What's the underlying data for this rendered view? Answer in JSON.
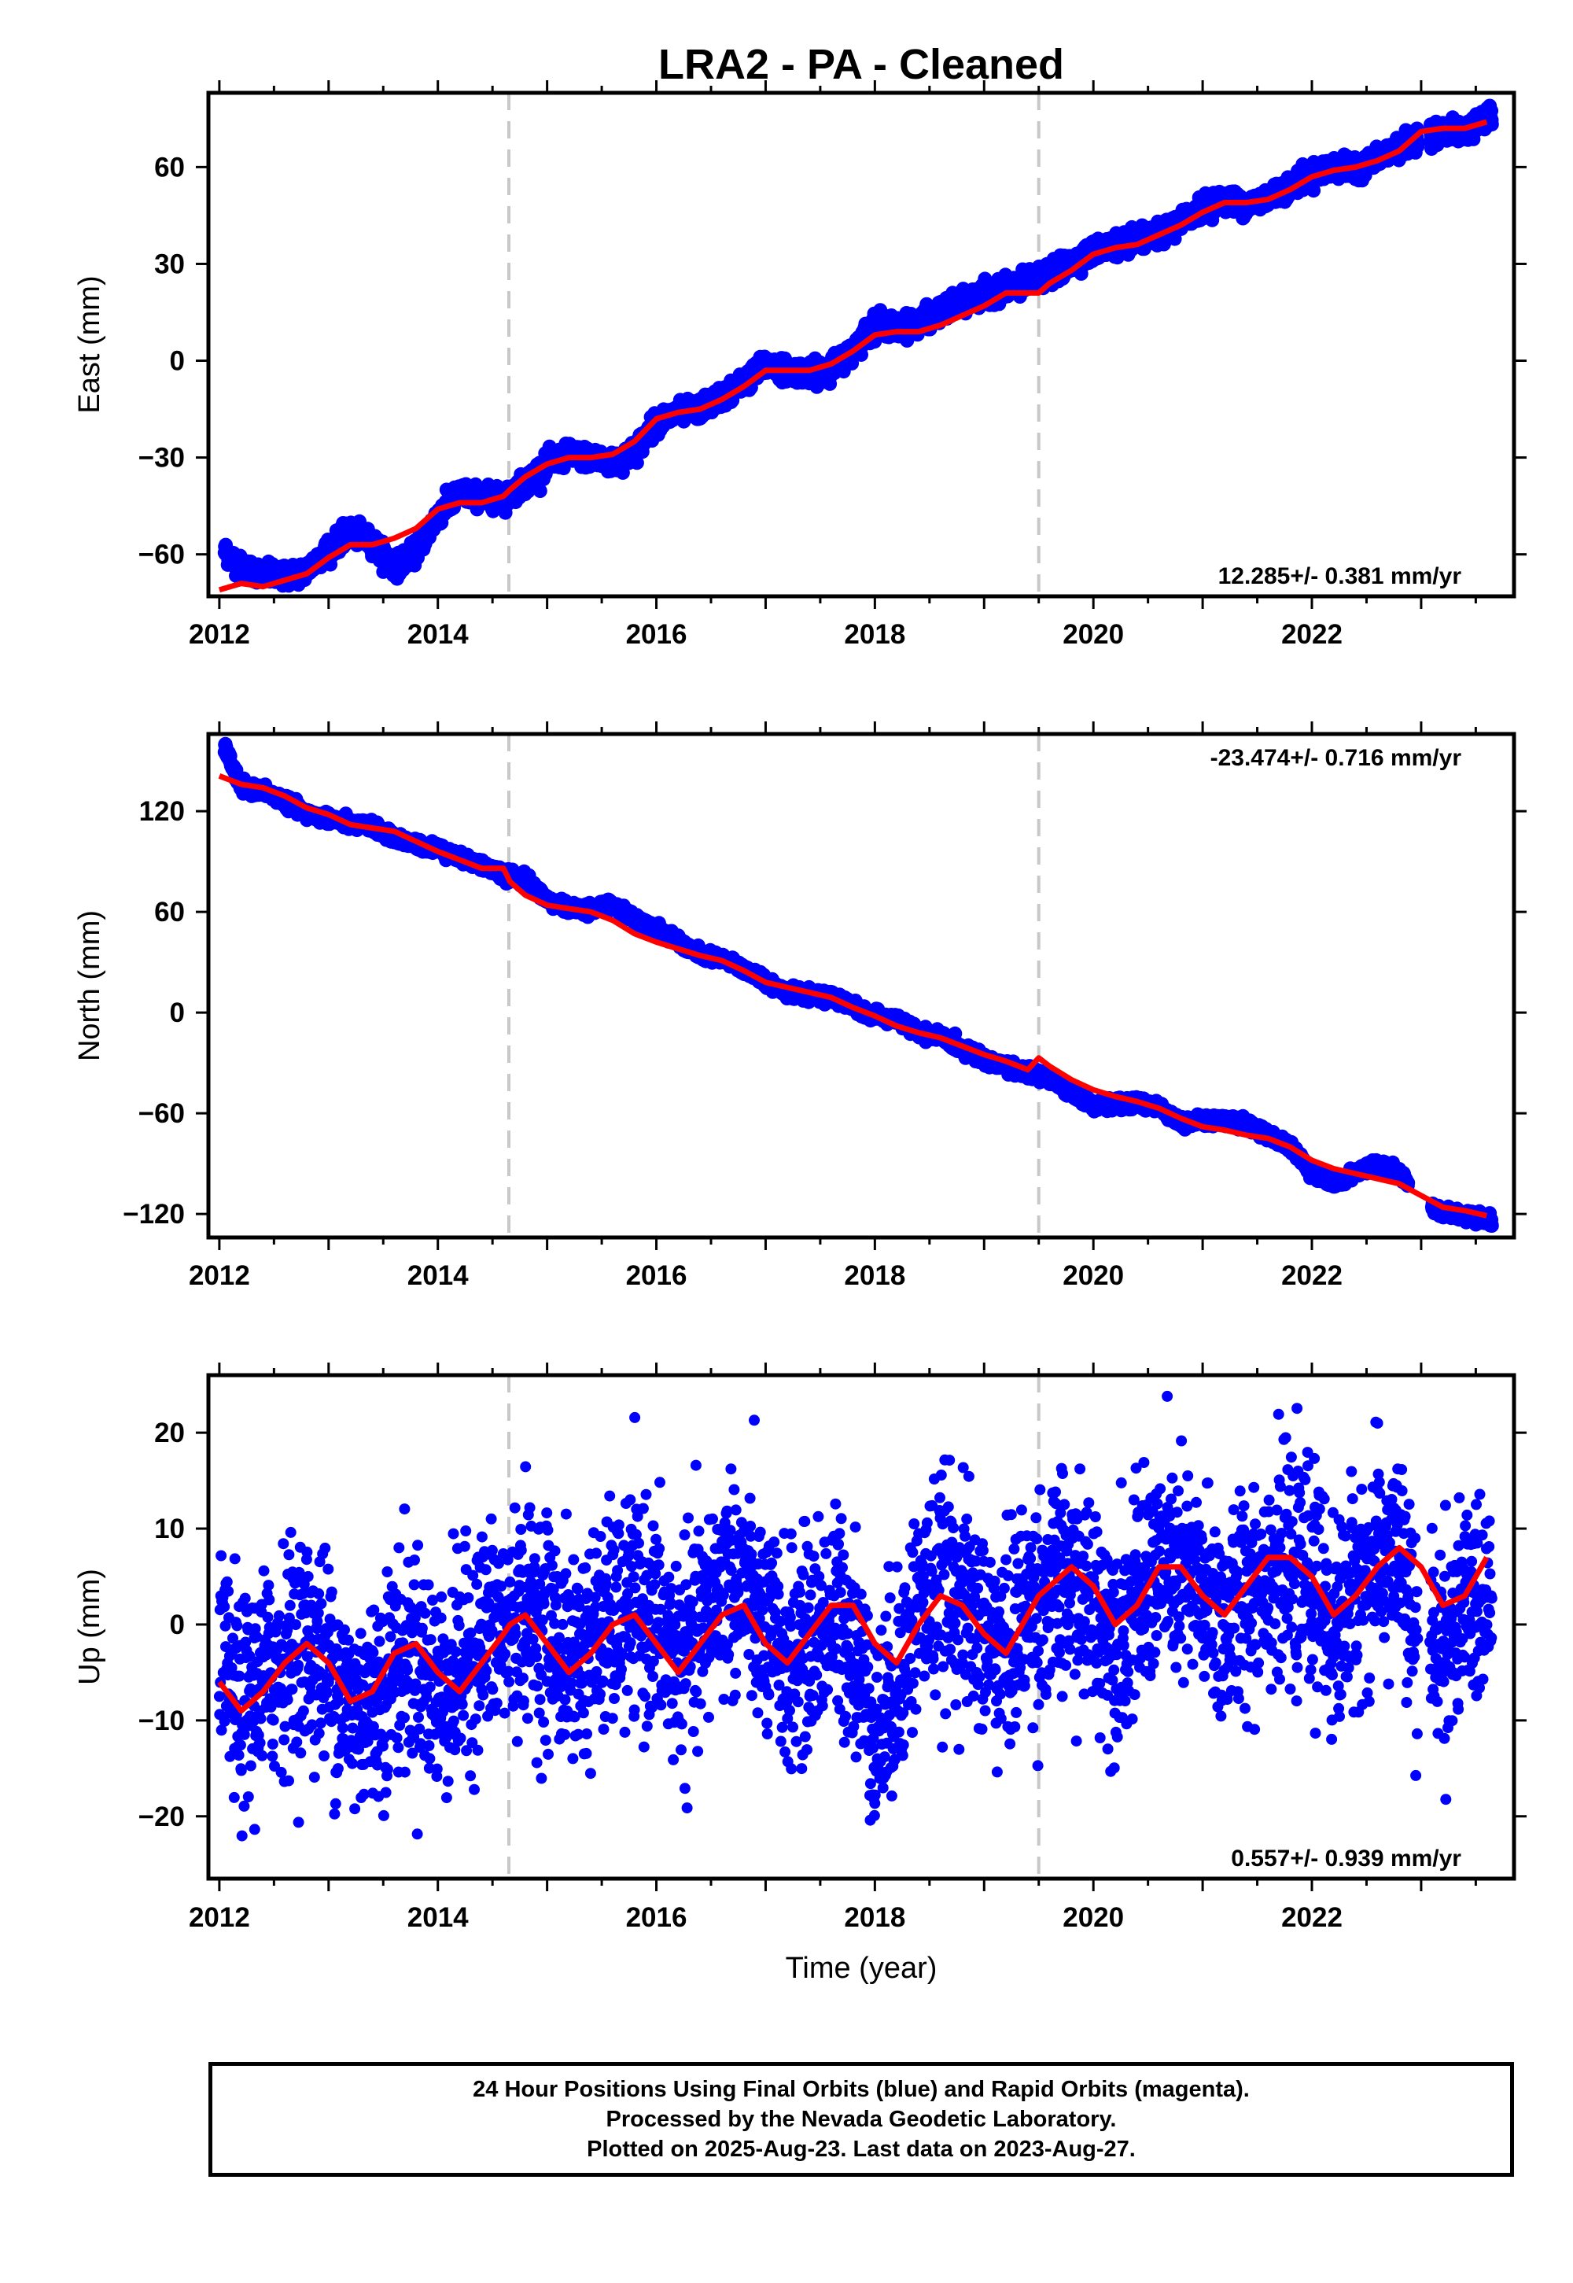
{
  "chart_data": {
    "type": "scatter",
    "title": "LRA2  - PA - Cleaned",
    "xlabel": "Time (year)",
    "xlim": [
      2011.9,
      2023.85
    ],
    "xticks": [
      2012,
      2014,
      2016,
      2018,
      2020,
      2022
    ],
    "xtick_labels": [
      "2012",
      "2014",
      "2016",
      "2018",
      "2020",
      "2022"
    ],
    "equipment_change_lines": [
      2014.65,
      2019.5
    ],
    "panels": [
      {
        "name": "East",
        "ylabel": "East (mm)",
        "ylim": [
          -73,
          83
        ],
        "yticks": [
          -60,
          -30,
          0,
          30,
          60
        ],
        "ytick_labels": [
          "−60",
          "−30",
          "0",
          "30",
          "60"
        ],
        "rate_label": "12.285+/- 0.381 mm/yr",
        "rate_position": "bottom-right",
        "series": [
          {
            "name": "Final Orbits",
            "kind": "daily-positions",
            "color": "#0000ff",
            "x": [
              2012.05,
              2012.2,
              2012.4,
              2012.6,
              2012.8,
              2013.0,
              2013.2,
              2013.4,
              2013.6,
              2013.8,
              2014.0,
              2014.2,
              2014.4,
              2014.6,
              2014.8,
              2015.0,
              2015.2,
              2015.4,
              2015.6,
              2015.8,
              2016.0,
              2016.2,
              2016.4,
              2016.6,
              2016.8,
              2017.0,
              2017.2,
              2017.4,
              2017.6,
              2017.8,
              2018.0,
              2018.2,
              2018.4,
              2018.6,
              2018.8,
              2019.0,
              2019.2,
              2019.4,
              2019.6,
              2019.8,
              2020.0,
              2020.2,
              2020.4,
              2020.6,
              2020.8,
              2021.0,
              2021.2,
              2021.4,
              2021.6,
              2021.8,
              2022.0,
              2022.2,
              2022.4,
              2022.6,
              2022.8,
              2023.0,
              2023.2,
              2023.4,
              2023.6
            ],
            "y": [
              -59,
              -64,
              -66,
              -67,
              -65,
              -58,
              -53,
              -56,
              -64,
              -59,
              -48,
              -41,
              -42,
              -43,
              -38,
              -32,
              -29,
              -30,
              -32,
              -28,
              -19,
              -16,
              -15,
              -11,
              -7,
              -1,
              -3,
              -4,
              -2,
              3,
              12,
              10,
              12,
              15,
              18,
              21,
              22,
              24,
              27,
              30,
              34,
              36,
              37,
              39,
              43,
              48,
              50,
              48,
              51,
              54,
              58,
              60,
              59,
              63,
              66,
              70,
              71,
              71,
              75
            ]
          },
          {
            "name": "Model fit",
            "kind": "trend",
            "color": "#ff0000",
            "x": [
              2012.0,
              2012.2,
              2012.4,
              2012.6,
              2012.8,
              2013.0,
              2013.2,
              2013.4,
              2013.6,
              2013.8,
              2014.0,
              2014.2,
              2014.4,
              2014.6,
              2014.66,
              2014.8,
              2015.0,
              2015.2,
              2015.4,
              2015.6,
              2015.8,
              2016.0,
              2016.2,
              2016.4,
              2016.6,
              2016.8,
              2017.0,
              2017.2,
              2017.4,
              2017.6,
              2017.8,
              2018.0,
              2018.2,
              2018.4,
              2018.6,
              2018.8,
              2019.0,
              2019.2,
              2019.4,
              2019.5,
              2019.6,
              2019.8,
              2020.0,
              2020.2,
              2020.4,
              2020.6,
              2020.8,
              2021.0,
              2021.2,
              2021.4,
              2021.6,
              2021.8,
              2022.0,
              2022.2,
              2022.4,
              2022.6,
              2022.8,
              2023.0,
              2023.2,
              2023.4,
              2023.6
            ],
            "y": [
              -71,
              -69,
              -70,
              -68,
              -66,
              -61,
              -57,
              -57,
              -55,
              -52,
              -46,
              -44,
              -44,
              -42,
              -40,
              -36,
              -32,
              -30,
              -30,
              -29,
              -25,
              -18,
              -16,
              -15,
              -12,
              -8,
              -3,
              -3,
              -3,
              -1,
              3,
              8,
              9,
              9,
              11,
              14,
              17,
              21,
              21,
              21,
              24,
              28,
              33,
              35,
              36,
              39,
              42,
              46,
              49,
              49,
              50,
              53,
              57,
              59,
              60,
              62,
              65,
              71,
              72,
              72,
              74
            ]
          }
        ]
      },
      {
        "name": "North",
        "ylabel": "North (mm)",
        "ylim": [
          -134,
          166
        ],
        "yticks": [
          -120,
          -60,
          0,
          60,
          120
        ],
        "ytick_labels": [
          "−120",
          "−60",
          "0",
          "60",
          "120"
        ],
        "rate_label": "-23.474+/- 0.716 mm/yr",
        "rate_position": "top-right",
        "series": [
          {
            "name": "Final Orbits",
            "kind": "daily-positions",
            "color": "#0000ff",
            "x": [
              2012.05,
              2012.2,
              2012.4,
              2012.6,
              2012.8,
              2013.0,
              2013.2,
              2013.4,
              2013.6,
              2013.8,
              2014.0,
              2014.2,
              2014.4,
              2014.6,
              2014.8,
              2015.0,
              2015.2,
              2015.4,
              2015.6,
              2015.8,
              2016.0,
              2016.2,
              2016.4,
              2016.6,
              2016.8,
              2017.0,
              2017.2,
              2017.4,
              2017.6,
              2017.8,
              2018.0,
              2018.2,
              2018.4,
              2018.6,
              2018.8,
              2019.0,
              2019.2,
              2019.4,
              2019.6,
              2019.8,
              2020.0,
              2020.2,
              2020.4,
              2020.6,
              2020.8,
              2021.0,
              2021.2,
              2021.4,
              2021.6,
              2021.8,
              2022.0,
              2022.2,
              2022.4,
              2022.6,
              2022.8,
              2023.0,
              2023.2,
              2023.4,
              2023.6
            ],
            "y": [
              158,
              134,
              132,
              126,
              118,
              116,
              112,
              111,
              104,
              100,
              98,
              92,
              88,
              82,
              80,
              67,
              62,
              62,
              64,
              56,
              50,
              42,
              34,
              32,
              26,
              19,
              12,
              10,
              9,
              4,
              -2,
              -4,
              -12,
              -14,
              -22,
              -27,
              -32,
              -36,
              -39,
              -48,
              -55,
              -55,
              -54,
              -56,
              -66,
              -64,
              -64,
              -66,
              -73,
              -80,
              -95,
              -102,
              -95,
              -90,
              -96,
              -112,
              -119,
              -121,
              -124
            ]
          },
          {
            "name": "Model fit",
            "kind": "trend",
            "color": "#ff0000",
            "x": [
              2012.0,
              2012.2,
              2012.4,
              2012.6,
              2012.8,
              2013.0,
              2013.2,
              2013.4,
              2013.6,
              2013.8,
              2014.0,
              2014.2,
              2014.4,
              2014.6,
              2014.66,
              2014.8,
              2015.0,
              2015.2,
              2015.4,
              2015.6,
              2015.8,
              2016.0,
              2016.2,
              2016.4,
              2016.6,
              2016.8,
              2017.0,
              2017.2,
              2017.4,
              2017.6,
              2017.8,
              2018.0,
              2018.2,
              2018.4,
              2018.6,
              2018.8,
              2019.0,
              2019.2,
              2019.4,
              2019.5,
              2019.6,
              2019.8,
              2020.0,
              2020.2,
              2020.4,
              2020.6,
              2020.8,
              2021.0,
              2021.2,
              2021.4,
              2021.6,
              2021.8,
              2022.0,
              2022.2,
              2022.4,
              2022.6,
              2022.8,
              2023.0,
              2023.2,
              2023.4,
              2023.6
            ],
            "y": [
              141,
              136,
              134,
              129,
              122,
              118,
              112,
              110,
              108,
              102,
              96,
              91,
              86,
              86,
              78,
              70,
              64,
              62,
              60,
              55,
              47,
              42,
              38,
              34,
              31,
              25,
              18,
              15,
              12,
              9,
              3,
              -2,
              -8,
              -12,
              -15,
              -20,
              -25,
              -29,
              -34,
              -27,
              -32,
              -40,
              -46,
              -50,
              -53,
              -57,
              -63,
              -68,
              -70,
              -73,
              -75,
              -80,
              -88,
              -93,
              -96,
              -99,
              -102,
              -109,
              -116,
              -118,
              -121
            ]
          }
        ]
      },
      {
        "name": "Up",
        "ylabel": "Up (mm)",
        "ylim": [
          -26.5,
          26
        ],
        "yticks": [
          -20,
          -10,
          0,
          10,
          20
        ],
        "ytick_labels": [
          "−20",
          "−10",
          "0",
          "10",
          "20"
        ],
        "rate_label": "0.557+/- 0.939 mm/yr",
        "rate_position": "bottom-right",
        "series": [
          {
            "name": "Final Orbits",
            "kind": "daily-positions",
            "color": "#0000ff",
            "scatter_sd_mm": 5.5,
            "x": [
              2012.0,
              2012.2,
              2012.4,
              2012.6,
              2012.8,
              2013.0,
              2013.2,
              2013.4,
              2013.6,
              2013.8,
              2014.0,
              2014.2,
              2014.4,
              2014.6,
              2014.8,
              2015.0,
              2015.2,
              2015.4,
              2015.6,
              2015.8,
              2016.0,
              2016.2,
              2016.4,
              2016.6,
              2016.8,
              2017.0,
              2017.2,
              2017.4,
              2017.6,
              2017.8,
              2018.0,
              2018.2,
              2018.4,
              2018.6,
              2018.8,
              2019.0,
              2019.2,
              2019.4,
              2019.6,
              2019.8,
              2020.0,
              2020.2,
              2020.4,
              2020.6,
              2020.8,
              2021.0,
              2021.2,
              2021.4,
              2021.6,
              2021.8,
              2022.0,
              2022.2,
              2022.4,
              2022.6,
              2022.8,
              2022.95,
              2023.2,
              2023.4,
              2023.6
            ],
            "y": [
              -4,
              -9,
              -6,
              -3,
              -2,
              -4,
              -9,
              -8,
              -4,
              -3,
              -7,
              -5,
              -1,
              -1,
              2,
              0,
              -4,
              -2,
              0,
              2,
              0,
              -4,
              -1,
              5,
              4,
              -1,
              -4,
              -2,
              1,
              -1,
              -12,
              -6,
              2,
              4,
              3,
              -1,
              -3,
              2,
              3,
              4,
              2,
              -1,
              2,
              6,
              5,
              3,
              0,
              3,
              6,
              5,
              5,
              -1,
              4,
              6,
              8,
              -3,
              -2,
              1,
              4
            ]
          },
          {
            "name": "Model fit",
            "kind": "trend",
            "color": "#ff0000",
            "x": [
              2012.0,
              2012.2,
              2012.4,
              2012.6,
              2012.8,
              2013.0,
              2013.2,
              2013.4,
              2013.6,
              2013.8,
              2014.0,
              2014.2,
              2014.4,
              2014.6,
              2014.66,
              2014.8,
              2015.0,
              2015.2,
              2015.4,
              2015.6,
              2015.8,
              2016.0,
              2016.2,
              2016.4,
              2016.6,
              2016.8,
              2017.0,
              2017.2,
              2017.4,
              2017.6,
              2017.8,
              2018.0,
              2018.2,
              2018.4,
              2018.6,
              2018.8,
              2019.0,
              2019.2,
              2019.4,
              2019.5,
              2019.6,
              2019.8,
              2020.0,
              2020.2,
              2020.4,
              2020.6,
              2020.8,
              2021.0,
              2021.2,
              2021.4,
              2021.6,
              2021.8,
              2022.0,
              2022.2,
              2022.4,
              2022.6,
              2022.8,
              2023.0,
              2023.2,
              2023.4,
              2023.6
            ],
            "y": [
              -6,
              -9,
              -7,
              -4,
              -2,
              -4,
              -8,
              -7,
              -3,
              -2,
              -5,
              -7,
              -4,
              -1,
              0,
              1,
              -2,
              -5,
              -3,
              0,
              1,
              -2,
              -5,
              -2,
              1,
              2,
              -2,
              -4,
              -1,
              2,
              2,
              -2,
              -4,
              0,
              3,
              2,
              -1,
              -3,
              1,
              3,
              4,
              6,
              4,
              0,
              2,
              6,
              6,
              3,
              1,
              4,
              7,
              7,
              5,
              1,
              3,
              6,
              8,
              6,
              2,
              3,
              7
            ]
          }
        ]
      }
    ]
  },
  "footer": {
    "line1": "24 Hour Positions Using Final Orbits (blue) and Rapid Orbits (magenta).",
    "line2": "Processed by the Nevada Geodetic Laboratory.",
    "line3": "Plotted on 2025-Aug-23. Last data on 2023-Aug-27."
  }
}
